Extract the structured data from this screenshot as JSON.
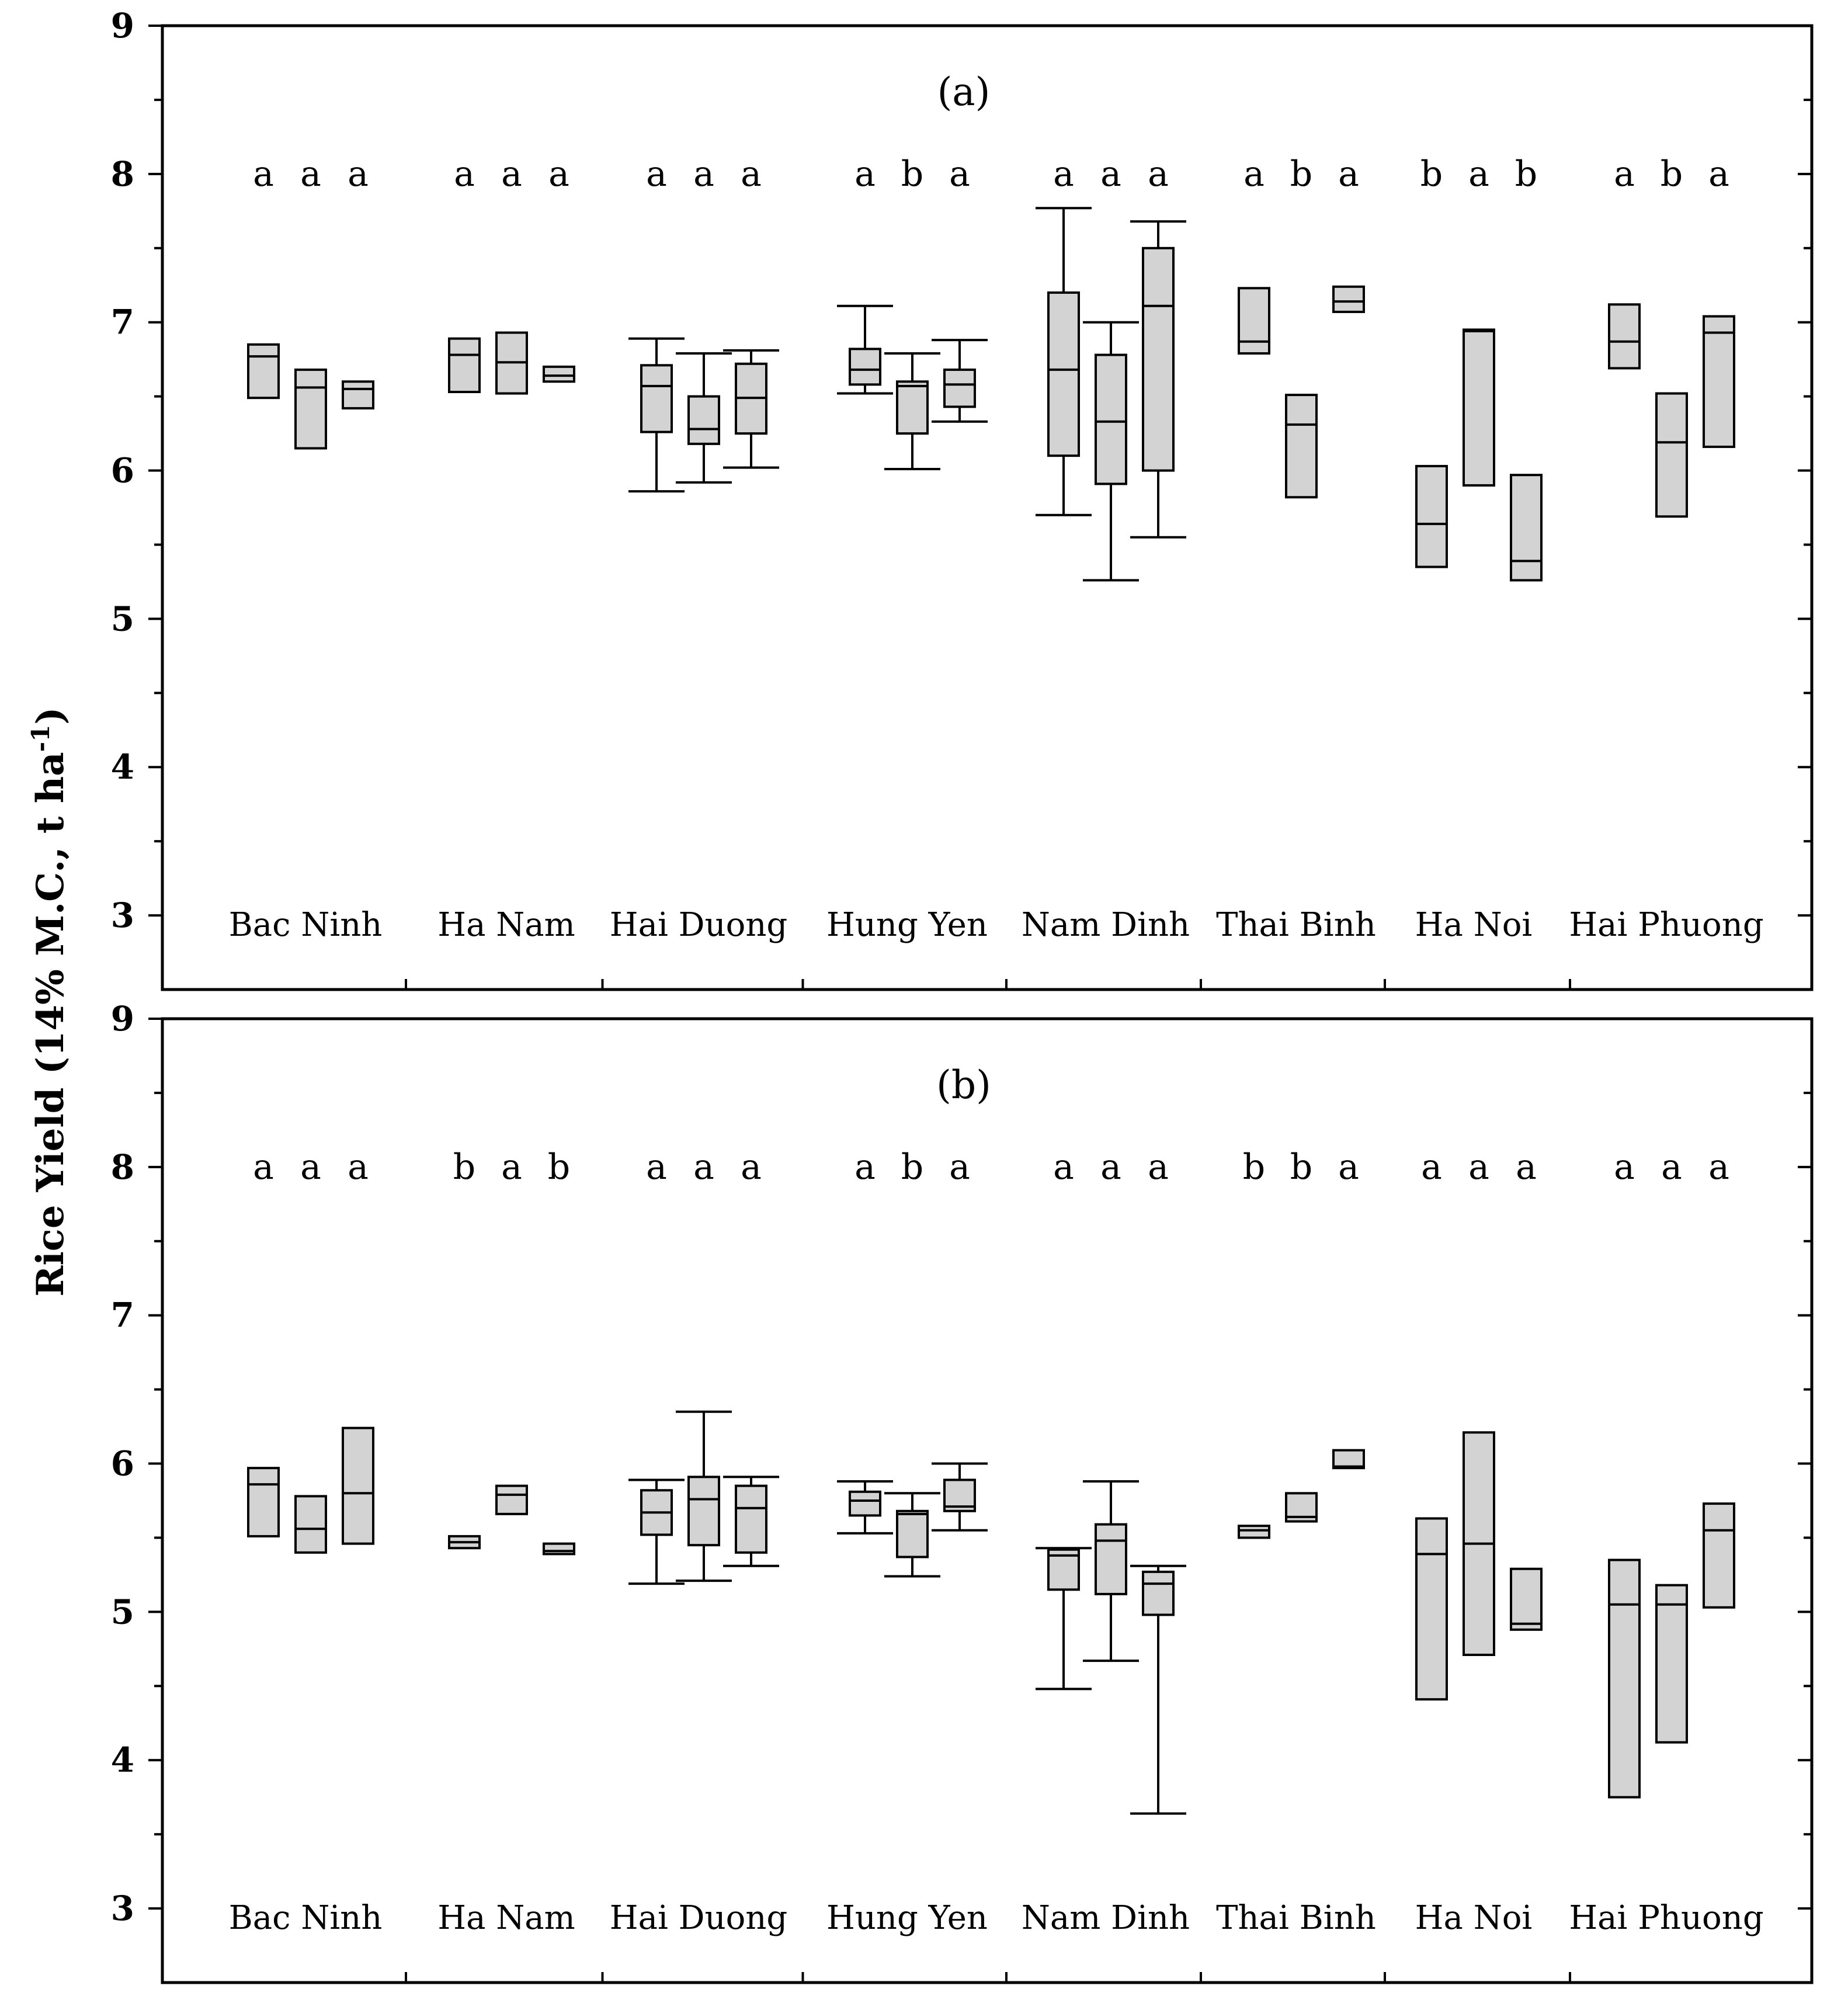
{
  "chart_data": {
    "type": "boxplot",
    "ylabel": "Rice Yield (14% M.C., t ha",
    "ylabel_superscript": "-1",
    "ylabel_close": ")",
    "ylim": [
      2.5,
      9
    ],
    "yticks": [
      "3",
      "4",
      "5",
      "6",
      "7",
      "8",
      "9"
    ],
    "colors": {
      "box_fill": "#d3d3d3",
      "line": "#000000"
    },
    "provinces": [
      "Bac Ninh",
      "Ha Nam",
      "Hai Duong",
      "Hung Yen",
      "Nam Dinh",
      "Thai Binh",
      "Ha Noi",
      "Hai Phuong"
    ],
    "panels": [
      {
        "label": "(a)",
        "letters": [
          [
            "a",
            "a",
            "a"
          ],
          [
            "a",
            "a",
            "a"
          ],
          [
            "a",
            "a",
            "a"
          ],
          [
            "a",
            "b",
            "a"
          ],
          [
            "a",
            "a",
            "a"
          ],
          [
            "a",
            "b",
            "a"
          ],
          [
            "b",
            "a",
            "b"
          ],
          [
            "a",
            "b",
            "a"
          ]
        ],
        "boxes": [
          [
            {
              "q1": 6.49,
              "median": 6.77,
              "q3": 6.85
            },
            {
              "q1": 6.15,
              "median": 6.56,
              "q3": 6.68
            },
            {
              "q1": 6.42,
              "median": 6.55,
              "q3": 6.6
            }
          ],
          [
            {
              "q1": 6.53,
              "median": 6.78,
              "q3": 6.89
            },
            {
              "q1": 6.52,
              "median": 6.73,
              "q3": 6.93
            },
            {
              "q1": 6.6,
              "median": 6.64,
              "q3": 6.7
            }
          ],
          [
            {
              "wmin": 5.86,
              "q1": 6.26,
              "median": 6.57,
              "q3": 6.71,
              "wmax": 6.89
            },
            {
              "wmin": 5.92,
              "q1": 6.18,
              "median": 6.28,
              "q3": 6.5,
              "wmax": 6.79
            },
            {
              "wmin": 6.02,
              "q1": 6.25,
              "median": 6.49,
              "q3": 6.72,
              "wmax": 6.81
            }
          ],
          [
            {
              "wmin": 6.52,
              "q1": 6.58,
              "median": 6.68,
              "q3": 6.82,
              "wmax": 7.11
            },
            {
              "wmin": 6.01,
              "q1": 6.25,
              "median": 6.57,
              "q3": 6.6,
              "wmax": 6.79
            },
            {
              "wmin": 6.33,
              "q1": 6.43,
              "median": 6.58,
              "q3": 6.68,
              "wmax": 6.88
            }
          ],
          [
            {
              "wmin": 5.7,
              "q1": 6.1,
              "median": 6.68,
              "q3": 7.2,
              "wmax": 7.77
            },
            {
              "wmin": 5.26,
              "q1": 5.91,
              "median": 6.33,
              "q3": 6.78,
              "wmax": 7.0
            },
            {
              "wmin": 5.55,
              "q1": 6.0,
              "median": 7.11,
              "q3": 7.5,
              "wmax": 7.68
            }
          ],
          [
            {
              "q1": 6.79,
              "median": 6.87,
              "q3": 7.23
            },
            {
              "q1": 5.82,
              "median": 6.31,
              "q3": 6.51
            },
            {
              "q1": 7.07,
              "median": 7.14,
              "q3": 7.24
            }
          ],
          [
            {
              "q1": 5.35,
              "median": 5.64,
              "q3": 6.03
            },
            {
              "q1": 5.9,
              "median": 6.94,
              "q3": 6.95
            },
            {
              "q1": 5.26,
              "median": 5.39,
              "q3": 5.97
            }
          ],
          [
            {
              "q1": 6.69,
              "median": 6.87,
              "q3": 7.12
            },
            {
              "q1": 5.69,
              "median": 6.19,
              "q3": 6.52
            },
            {
              "q1": 6.16,
              "median": 6.93,
              "q3": 7.04
            }
          ]
        ]
      },
      {
        "label": "(b)",
        "letters": [
          [
            "a",
            "a",
            "a"
          ],
          [
            "b",
            "a",
            "b"
          ],
          [
            "a",
            "a",
            "a"
          ],
          [
            "a",
            "b",
            "a"
          ],
          [
            "a",
            "a",
            "a"
          ],
          [
            "b",
            "b",
            "a"
          ],
          [
            "a",
            "a",
            "a"
          ],
          [
            "a",
            "a",
            "a"
          ]
        ],
        "boxes": [
          [
            {
              "q1": 5.51,
              "median": 5.86,
              "q3": 5.97
            },
            {
              "q1": 5.4,
              "median": 5.56,
              "q3": 5.78
            },
            {
              "q1": 5.46,
              "median": 5.8,
              "q3": 6.24
            }
          ],
          [
            {
              "q1": 5.43,
              "median": 5.47,
              "q3": 5.51
            },
            {
              "q1": 5.66,
              "median": 5.79,
              "q3": 5.85
            },
            {
              "q1": 5.39,
              "median": 5.41,
              "q3": 5.46
            }
          ],
          [
            {
              "wmin": 5.19,
              "q1": 5.52,
              "median": 5.67,
              "q3": 5.82,
              "wmax": 5.89
            },
            {
              "wmin": 5.21,
              "q1": 5.45,
              "median": 5.76,
              "q3": 5.91,
              "wmax": 6.35
            },
            {
              "wmin": 5.31,
              "q1": 5.4,
              "median": 5.7,
              "q3": 5.85,
              "wmax": 5.91
            }
          ],
          [
            {
              "wmin": 5.53,
              "q1": 5.65,
              "median": 5.75,
              "q3": 5.81,
              "wmax": 5.88
            },
            {
              "wmin": 5.24,
              "q1": 5.37,
              "median": 5.66,
              "q3": 5.68,
              "wmax": 5.8
            },
            {
              "wmin": 5.55,
              "q1": 5.68,
              "median": 5.71,
              "q3": 5.89,
              "wmax": 6.0
            }
          ],
          [
            {
              "wmin": 4.48,
              "q1": 5.15,
              "median": 5.38,
              "q3": 5.42,
              "wmax": 5.43
            },
            {
              "wmin": 4.67,
              "q1": 5.12,
              "median": 5.48,
              "q3": 5.59,
              "wmax": 5.88
            },
            {
              "wmin": 3.64,
              "q1": 4.98,
              "median": 5.19,
              "q3": 5.27,
              "wmax": 5.31
            }
          ],
          [
            {
              "q1": 5.5,
              "median": 5.55,
              "q3": 5.58
            },
            {
              "q1": 5.61,
              "median": 5.64,
              "q3": 5.8
            },
            {
              "q1": 5.97,
              "median": 5.98,
              "q3": 6.09
            }
          ],
          [
            {
              "q1": 4.41,
              "median": 5.39,
              "q3": 5.63
            },
            {
              "q1": 4.71,
              "median": 5.46,
              "q3": 6.21
            },
            {
              "q1": 4.88,
              "median": 4.92,
              "q3": 5.29
            }
          ],
          [
            {
              "q1": 3.75,
              "median": 5.05,
              "q3": 5.35
            },
            {
              "q1": 4.12,
              "median": 5.05,
              "q3": 5.18
            },
            {
              "q1": 5.03,
              "median": 5.55,
              "q3": 5.73
            }
          ]
        ]
      }
    ]
  }
}
